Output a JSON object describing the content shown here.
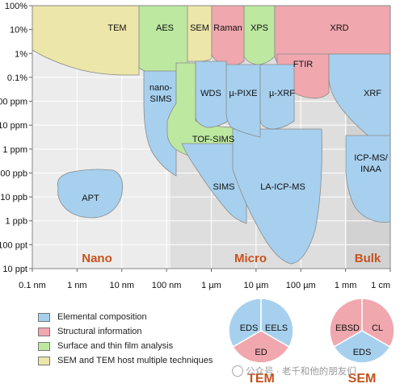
{
  "chart_data": {
    "type": "area",
    "y_ticks": [
      "100%",
      "10%",
      "1%",
      "0.1%",
      "100 ppm",
      "10 ppm",
      "1 ppm",
      "100 ppb",
      "10 ppb",
      "1 ppb",
      "100 ppt",
      "10 ppt"
    ],
    "x_ticks": [
      "0.1 nm",
      "1 nm",
      "10 nm",
      "100 nm",
      "1 µm",
      "10 µm",
      "100 µm",
      "1 mm",
      "1 cm"
    ],
    "regions": [
      {
        "label": "Nano",
        "x_range": [
          "0.1 nm",
          "100 nm"
        ]
      },
      {
        "label": "Micro",
        "x_range": [
          "100 nm",
          "1 mm"
        ]
      },
      {
        "label": "Bulk",
        "x_range": [
          "1 mm",
          "1 cm"
        ]
      }
    ],
    "grid": true,
    "techniques": [
      {
        "name": "TEM",
        "category": "host"
      },
      {
        "name": "AES",
        "category": "surface"
      },
      {
        "name": "SEM",
        "category": "host"
      },
      {
        "name": "Raman",
        "category": "structural"
      },
      {
        "name": "XPS",
        "category": "surface"
      },
      {
        "name": "XRD",
        "category": "structural"
      },
      {
        "name": "FTIR",
        "category": "structural"
      },
      {
        "name": "nano-SIMS",
        "category": "elemental"
      },
      {
        "name": "WDS",
        "category": "elemental"
      },
      {
        "name": "µ-PIXE",
        "category": "elemental"
      },
      {
        "name": "µ-XRF",
        "category": "elemental"
      },
      {
        "name": "XRF",
        "category": "elemental"
      },
      {
        "name": "TOF-SIMS",
        "category": "surface"
      },
      {
        "name": "SIMS",
        "category": "elemental"
      },
      {
        "name": "LA-ICP-MS",
        "category": "elemental"
      },
      {
        "name": "ICP-MS/INAA",
        "category": "elemental"
      },
      {
        "name": "APT",
        "category": "elemental"
      }
    ]
  },
  "legend": {
    "items": [
      {
        "label": "Elemental composition",
        "color": "#a7d0ef"
      },
      {
        "label": "Structural information",
        "color": "#f0a7ae"
      },
      {
        "label": "Surface and thin film analysis",
        "color": "#bce8a0"
      },
      {
        "label": "SEM and TEM host multiple techniques",
        "color": "#ece6a9"
      }
    ]
  },
  "pies": [
    {
      "title": "TEM",
      "segments": [
        {
          "label": "EDS",
          "category": "elemental"
        },
        {
          "label": "EELS",
          "category": "elemental"
        },
        {
          "label": "ED",
          "category": "structural"
        }
      ]
    },
    {
      "title": "SEM",
      "segments": [
        {
          "label": "EBSD",
          "category": "structural"
        },
        {
          "label": "CL",
          "category": "structural"
        },
        {
          "label": "EDS",
          "category": "elemental"
        }
      ]
    }
  ],
  "colors": {
    "elemental": "#a7d0ef",
    "structural": "#f0a7ae",
    "surface": "#bce8a0",
    "host": "#ece6a9",
    "region_label": "#c8511d"
  },
  "watermark": {
    "text": "公众号 · 老千和他的朋友们"
  }
}
